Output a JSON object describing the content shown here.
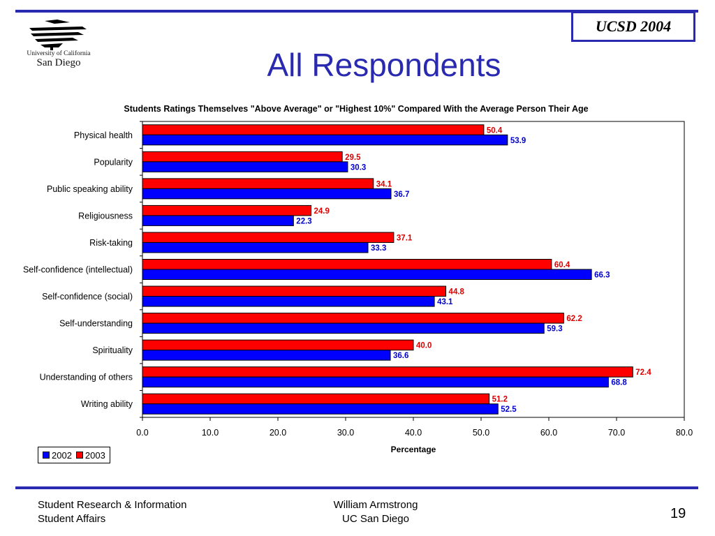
{
  "header": {
    "badge": "UCSD 2004",
    "logo_line1": "University of California",
    "logo_line2": "San Diego",
    "title": "All Respondents"
  },
  "chart_data": {
    "type": "bar",
    "orientation": "horizontal",
    "title": "Students Ratings Themselves \"Above Average\" or \"Highest 10%\" Compared With the Average Person Their Age",
    "xlabel": "Percentage",
    "ylabel": "",
    "xlim": [
      0,
      80
    ],
    "xticks": [
      "0.0",
      "10.0",
      "20.0",
      "30.0",
      "40.0",
      "50.0",
      "60.0",
      "70.0",
      "80.0"
    ],
    "grid": false,
    "legend_position": "bottom-left",
    "categories": [
      "Physical health",
      "Popularity",
      "Public speaking ability",
      "Religiousness",
      "Risk-taking",
      "Self-confidence (intellectual)",
      "Self-confidence (social)",
      "Self-understanding",
      "Spirituality",
      "Understanding of others",
      "Writing ability"
    ],
    "series": [
      {
        "name": "2002",
        "color": "#0000ff",
        "values": [
          53.9,
          30.3,
          36.7,
          22.3,
          33.3,
          66.3,
          43.1,
          59.3,
          36.6,
          68.8,
          52.5
        ],
        "labels": [
          "53.9",
          "30.3",
          "36.7",
          "22.3",
          "33.3",
          "66.3",
          "43.1",
          "59.3",
          "36.6",
          "68.8",
          "52.5"
        ]
      },
      {
        "name": "2003",
        "color": "#ff0000",
        "values": [
          50.4,
          29.5,
          34.1,
          24.9,
          37.1,
          60.4,
          44.8,
          62.2,
          40.0,
          72.4,
          51.2
        ],
        "labels": [
          "50.4",
          "29.5",
          "34.1",
          "24.9",
          "37.1",
          "60.4",
          "44.8",
          "62.2",
          "40.0",
          "72.4",
          "51.2"
        ]
      }
    ]
  },
  "footer": {
    "left_line1": "Student Research & Information",
    "left_line2": "Student Affairs",
    "mid_line1": "William Armstrong",
    "mid_line2": "UC San Diego",
    "page": "19"
  }
}
